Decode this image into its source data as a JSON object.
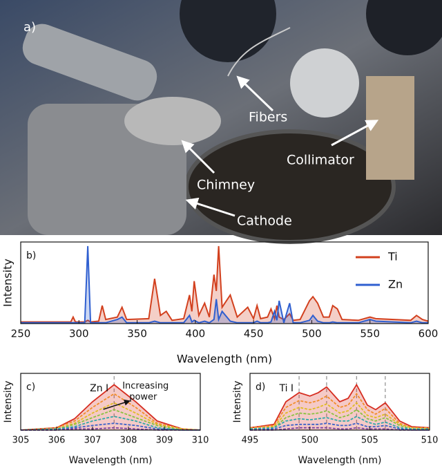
{
  "photo": {
    "label": "a)",
    "annotations": [
      "Fibers",
      "Collimator",
      "Chimney",
      "Cathode"
    ]
  },
  "chart_data": [
    {
      "type": "line",
      "panel_label": "b)",
      "ylabel": "Intensity",
      "xlabel": "Wavelength (nm)",
      "legend": "upper right",
      "x": [
        250,
        293,
        295,
        297,
        305,
        307.6,
        310,
        317,
        320,
        323,
        333,
        337,
        341,
        360,
        365,
        370,
        375,
        380,
        390,
        395,
        397,
        399,
        403,
        408,
        412,
        416,
        418,
        420,
        423,
        430,
        436,
        445,
        450,
        453,
        456,
        462,
        465,
        468,
        470,
        472,
        476,
        481,
        484,
        490,
        498,
        501,
        505,
        510,
        515,
        518,
        522,
        526,
        540,
        550,
        555,
        585,
        590,
        595,
        600
      ],
      "series": [
        {
          "name": "Ti",
          "color": "#d2401e",
          "values": [
            2,
            2,
            8,
            2,
            2,
            4,
            2,
            3,
            22,
            5,
            8,
            20,
            5,
            6,
            55,
            10,
            15,
            4,
            6,
            35,
            15,
            52,
            10,
            25,
            8,
            60,
            40,
            95,
            20,
            35,
            8,
            20,
            6,
            22,
            6,
            8,
            18,
            6,
            22,
            8,
            5,
            12,
            4,
            5,
            28,
            33,
            25,
            8,
            8,
            22,
            18,
            5,
            4,
            8,
            6,
            4,
            10,
            5,
            3
          ]
        },
        {
          "name": "Zn",
          "color": "#2f5fd0",
          "values": [
            1,
            1,
            1,
            1,
            1,
            95,
            1,
            1,
            1,
            1,
            5,
            8,
            1,
            1,
            3,
            1,
            1,
            1,
            1,
            10,
            2,
            4,
            1,
            3,
            1,
            5,
            30,
            5,
            15,
            3,
            1,
            1,
            1,
            3,
            1,
            1,
            2,
            15,
            4,
            28,
            1,
            25,
            1,
            1,
            4,
            10,
            3,
            1,
            1,
            2,
            1,
            1,
            1,
            5,
            3,
            1,
            3,
            1,
            1
          ]
        }
      ],
      "xlim": [
        250,
        600
      ],
      "xticks": [
        250,
        300,
        350,
        400,
        450,
        500,
        550,
        600
      ],
      "ylim": [
        0,
        100
      ]
    },
    {
      "type": "line",
      "panel_label": "c)",
      "ylabel": "Intensity",
      "xlabel": "Wavelength (nm)",
      "line_label": "Zn I",
      "annotation": "Increasing power",
      "reference_lines": [
        307.6
      ],
      "x": [
        305,
        306,
        306.5,
        307,
        307.6,
        308.2,
        308.8,
        309.5,
        310
      ],
      "series": [
        {
          "color": "#d62d20",
          "values": [
            0,
            2,
            10,
            25,
            40,
            25,
            8,
            1,
            0
          ]
        },
        {
          "color": "#f28c28",
          "values": [
            0,
            2,
            8,
            20,
            32,
            20,
            6,
            1,
            0
          ]
        },
        {
          "color": "#e0bb22",
          "values": [
            0,
            1,
            6,
            15,
            24,
            15,
            5,
            1,
            0
          ]
        },
        {
          "color": "#8ac23f",
          "values": [
            0,
            1,
            5,
            11,
            18,
            11,
            4,
            0,
            0
          ]
        },
        {
          "color": "#2fa8a8",
          "values": [
            0,
            1,
            3,
            8,
            12,
            8,
            2,
            0,
            0
          ]
        },
        {
          "color": "#3b62c8",
          "values": [
            0,
            0,
            2,
            4,
            6,
            4,
            1,
            0,
            0
          ]
        },
        {
          "color": "#7a3fa0",
          "values": [
            0,
            0,
            1,
            1,
            2,
            1,
            0,
            0,
            0
          ]
        }
      ],
      "xlim": [
        305,
        310
      ],
      "xticks": [
        305,
        306,
        307,
        308,
        309,
        310
      ],
      "ylim": [
        0,
        50
      ]
    },
    {
      "type": "line",
      "panel_label": "d)",
      "ylabel": "Intensity",
      "xlabel": "Wavelength (nm)",
      "line_label": "Ti I",
      "reference_lines": [
        499.1,
        501.4,
        503.9,
        506.3
      ],
      "x": [
        495,
        497,
        498,
        499.1,
        500,
        500.7,
        501.4,
        502.5,
        503.2,
        503.9,
        504.8,
        505.5,
        506.3,
        507.5,
        508.5,
        510
      ],
      "series": [
        {
          "color": "#d62d20",
          "values": [
            2,
            5,
            25,
            33,
            30,
            33,
            38,
            25,
            28,
            40,
            22,
            18,
            24,
            8,
            3,
            2
          ]
        },
        {
          "color": "#f28c28",
          "values": [
            2,
            4,
            20,
            26,
            24,
            26,
            30,
            20,
            22,
            32,
            18,
            14,
            19,
            6,
            2,
            2
          ]
        },
        {
          "color": "#e0bb22",
          "values": [
            1,
            3,
            15,
            20,
            18,
            20,
            23,
            15,
            17,
            24,
            13,
            11,
            14,
            5,
            2,
            1
          ]
        },
        {
          "color": "#8ac23f",
          "values": [
            1,
            2,
            11,
            15,
            14,
            15,
            17,
            11,
            13,
            18,
            10,
            8,
            11,
            4,
            1,
            1
          ]
        },
        {
          "color": "#2fa8a8",
          "values": [
            1,
            2,
            8,
            10,
            9,
            10,
            11,
            8,
            8,
            12,
            7,
            5,
            7,
            2,
            1,
            1
          ]
        },
        {
          "color": "#3b62c8",
          "values": [
            0,
            1,
            4,
            5,
            5,
            5,
            6,
            4,
            4,
            6,
            3,
            3,
            4,
            1,
            0,
            0
          ]
        },
        {
          "color": "#7a3fa0",
          "values": [
            0,
            0,
            1,
            2,
            2,
            2,
            2,
            1,
            1,
            2,
            1,
            1,
            1,
            0,
            0,
            0
          ]
        }
      ],
      "xlim": [
        495,
        510
      ],
      "xticks": [
        495,
        500,
        505,
        510
      ],
      "ylim": [
        0,
        50
      ]
    }
  ]
}
